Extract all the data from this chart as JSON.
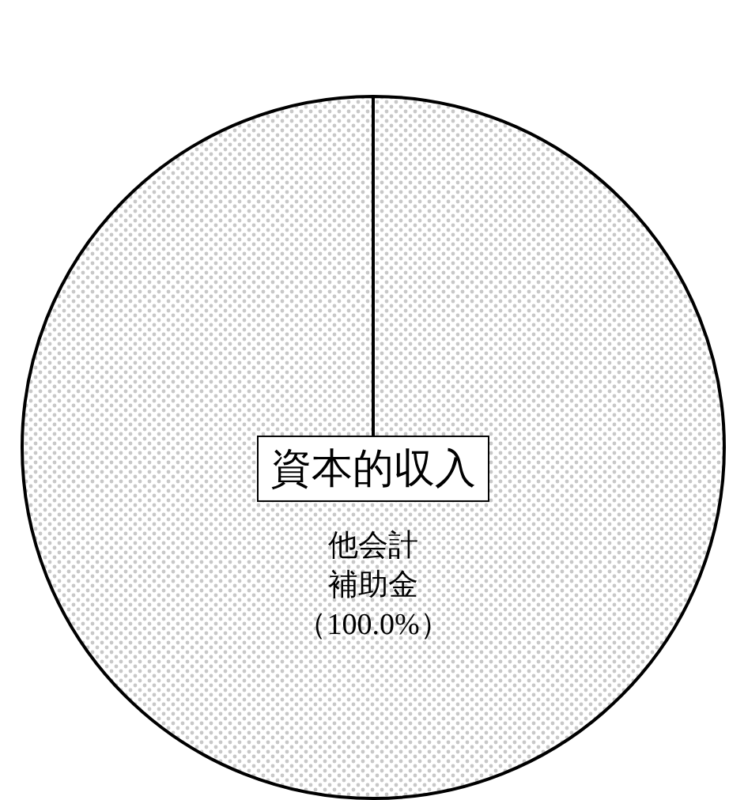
{
  "chart_data": {
    "type": "pie",
    "title": "資本的収入",
    "categories": [
      "他会計補助金"
    ],
    "values": [
      100
    ],
    "value_labels": [
      "（100.0%）"
    ],
    "colors": [
      "#c8c8c8"
    ]
  }
}
